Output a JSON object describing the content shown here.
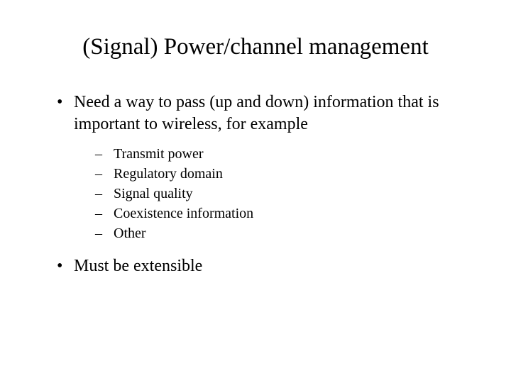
{
  "title": "(Signal) Power/channel management",
  "bullets": [
    {
      "text": "Need a way to pass (up and down) information that is important to wireless, for example",
      "sub": [
        "Transmit power",
        "Regulatory domain",
        "Signal quality",
        "Coexistence information",
        "Other"
      ]
    },
    {
      "text": "Must be extensible",
      "sub": []
    }
  ]
}
